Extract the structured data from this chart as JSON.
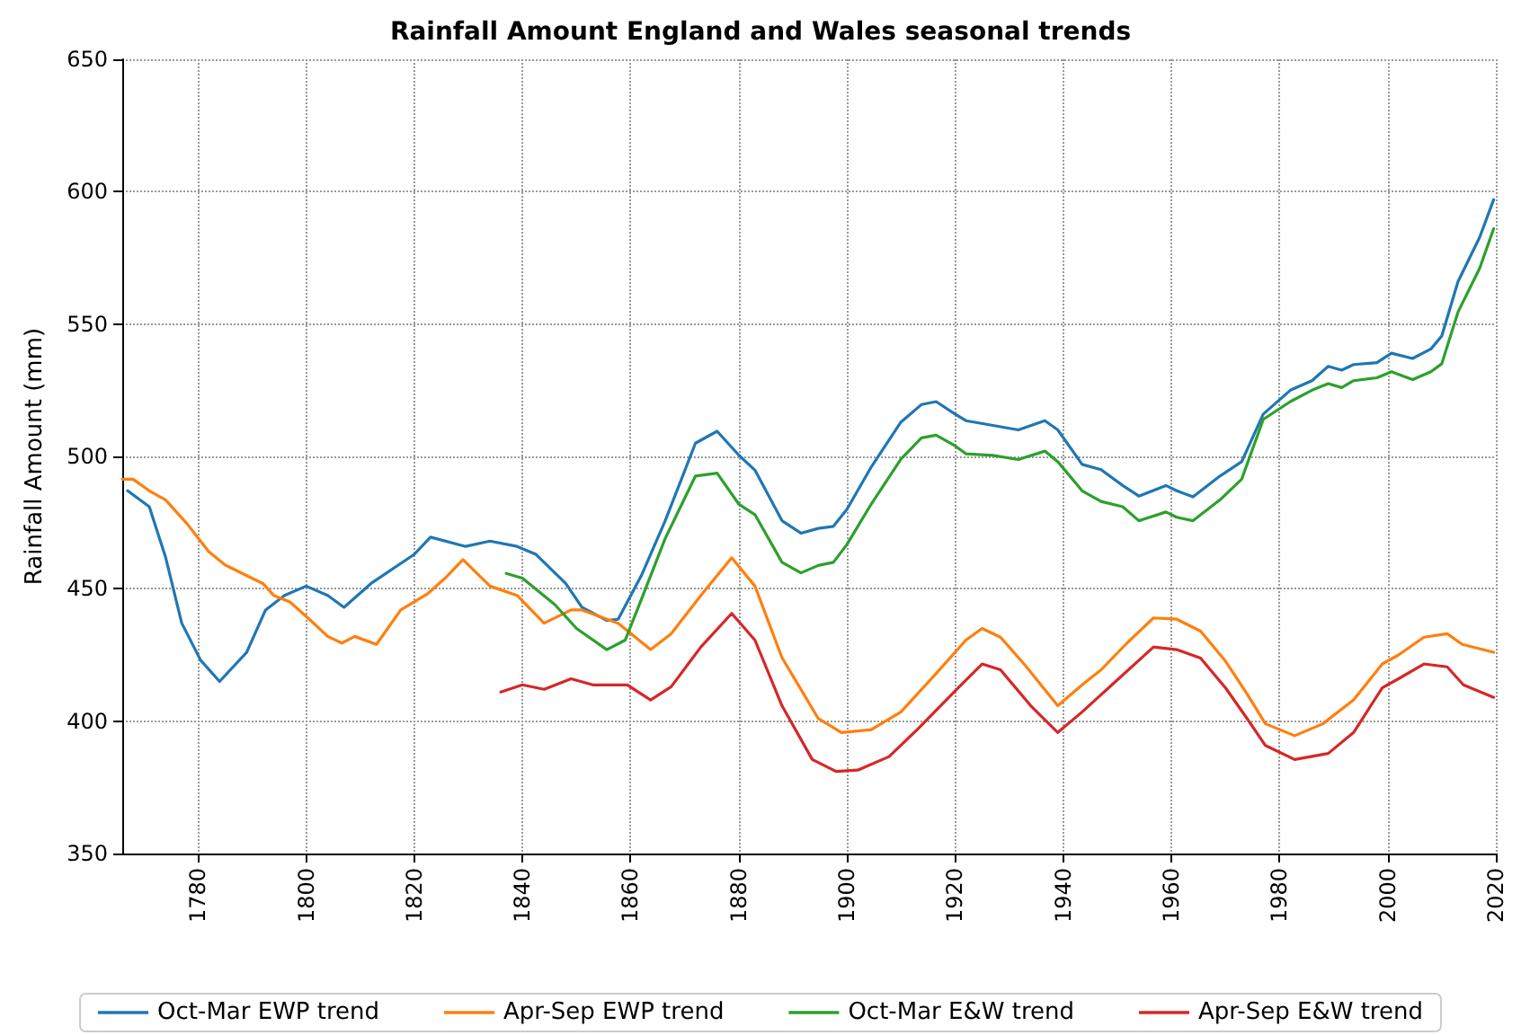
{
  "chart_data": {
    "type": "line",
    "title": "Rainfall Amount England and Wales seasonal trends",
    "ylabel": "Rainfall Amount (mm)",
    "xlim": [
      1766,
      2020
    ],
    "xticks": [
      1780,
      1800,
      1820,
      1840,
      1860,
      1880,
      1900,
      1920,
      1940,
      1960,
      1980,
      2000,
      2020
    ],
    "ylim": [
      350,
      650
    ],
    "yticks": [
      350,
      400,
      450,
      500,
      550,
      600,
      650
    ],
    "grid": true,
    "legend": "bottom",
    "marker": "none",
    "line_style": "solid",
    "series": [
      {
        "name": "Oct-Mar EWP trend",
        "color": "#1f77b4",
        "x": [
          1767,
          1771,
          1774,
          1777,
          1780.5,
          1784,
          1789,
          1792.5,
          1796,
          1800,
          1804,
          1807,
          1812,
          1820,
          1823,
          1829.5,
          1834,
          1839,
          1842.5,
          1848,
          1851,
          1855.6,
          1857.7,
          1862,
          1866.4,
          1872,
          1876,
          1880,
          1883,
          1888,
          1891.5,
          1894.7,
          1897.5,
          1900,
          1904.5,
          1910,
          1913.8,
          1916.5,
          1920,
          1922,
          1927,
          1931.7,
          1936.6,
          1939,
          1943.5,
          1947,
          1951,
          1954,
          1959,
          1961,
          1964,
          1969,
          1973,
          1977,
          1982,
          1986,
          1989,
          1991.5,
          1993.7,
          1998,
          2000.7,
          2004.6,
          2008,
          2010,
          2013,
          2017,
          2019.6
        ],
        "values": [
          487,
          481,
          462,
          437,
          423,
          415,
          426,
          442,
          447.5,
          451,
          447.5,
          443,
          452,
          463,
          469.5,
          466,
          468,
          466,
          463,
          452,
          443,
          438,
          438.5,
          455,
          475.7,
          505,
          509.5,
          500.5,
          494.8,
          475.7,
          471,
          472.8,
          473.6,
          480,
          496,
          513,
          519.6,
          520.7,
          516,
          513.5,
          511.7,
          510,
          513.5,
          510,
          497,
          495,
          489,
          485,
          489,
          487,
          484.7,
          492.6,
          498,
          516,
          525,
          528.6,
          534,
          532.6,
          534.7,
          535.4,
          539,
          537,
          540.6,
          545.5,
          566,
          582.7,
          597
        ]
      },
      {
        "name": "Apr-Sep EWP trend",
        "color": "#ff7f0e",
        "x": [
          1766,
          1768,
          1771,
          1774,
          1778,
          1782,
          1785,
          1792,
          1794,
          1797,
          1800.6,
          1804,
          1806.6,
          1809,
          1813,
          1817.5,
          1822.4,
          1825.7,
          1829,
          1834,
          1839,
          1844,
          1849,
          1851,
          1857.7,
          1863.7,
          1867.5,
          1873,
          1878.7,
          1883,
          1888,
          1894.7,
          1899,
          1904.5,
          1910,
          1916.5,
          1922,
          1925,
          1928.4,
          1933,
          1939,
          1943.5,
          1947,
          1951.8,
          1956.7,
          1961,
          1965.4,
          1970,
          1974,
          1977.4,
          1982.8,
          1988,
          1993.7,
          1999,
          2002,
          2006.7,
          2011,
          2013.8,
          2019.6
        ],
        "values": [
          491.4,
          491.4,
          487,
          483.6,
          474.5,
          464,
          459,
          452,
          447.5,
          445,
          438.5,
          432,
          429.5,
          432,
          429,
          442,
          448,
          454,
          461,
          451,
          447.5,
          437,
          442,
          442,
          437,
          427,
          433,
          447.5,
          461.7,
          451,
          424,
          401,
          395.7,
          396.8,
          403.5,
          418,
          430.6,
          435,
          431.7,
          421,
          405.8,
          413.7,
          419.4,
          429.5,
          439,
          438.5,
          434,
          422.7,
          410.3,
          399,
          394.5,
          399,
          408,
          421.6,
          425,
          431.7,
          433,
          429,
          426
        ]
      },
      {
        "name": "Oct-Mar E&W trend",
        "color": "#2ca02c",
        "x": [
          1837,
          1840,
          1846,
          1850,
          1855.6,
          1859,
          1862,
          1866.4,
          1872,
          1876,
          1880,
          1883,
          1888,
          1891.5,
          1894.7,
          1897.5,
          1900,
          1904.5,
          1910,
          1913.8,
          1916.5,
          1920,
          1922,
          1927,
          1931.7,
          1936.6,
          1939,
          1943.5,
          1947,
          1951,
          1954,
          1959,
          1961,
          1964,
          1969,
          1973,
          1977,
          1982,
          1986,
          1989,
          1991.5,
          1993.7,
          1998,
          2000.7,
          2004.6,
          2008,
          2010,
          2013,
          2017,
          2019.6
        ],
        "values": [
          455.8,
          454,
          444,
          435,
          427,
          430.6,
          446,
          469,
          492.6,
          493.7,
          482,
          478,
          460,
          456,
          458.8,
          460,
          466.7,
          482,
          499,
          507,
          508,
          504,
          501,
          500.4,
          498.8,
          502,
          498,
          487,
          483,
          481,
          475.7,
          479,
          477,
          475.7,
          483.6,
          491.4,
          514,
          520.7,
          525,
          527.5,
          526,
          528.6,
          529.7,
          532,
          529,
          532,
          535,
          554.5,
          571,
          586
        ]
      },
      {
        "name": "Apr-Sep E&W trend",
        "color": "#d62728",
        "x": [
          1836,
          1840,
          1844,
          1849,
          1853,
          1855.6,
          1859.4,
          1863.7,
          1867.5,
          1873,
          1878.7,
          1883,
          1888,
          1893.6,
          1898,
          1902,
          1907.8,
          1913,
          1920,
          1925,
          1928.4,
          1934,
          1939,
          1943.5,
          1949,
          1956.7,
          1961,
          1965.4,
          1970,
          1974,
          1977.4,
          1982.8,
          1989,
          1993.7,
          1999,
          2002,
          2006.7,
          2011,
          2014,
          2019.6
        ],
        "values": [
          411,
          413.7,
          412,
          416,
          413.7,
          413.7,
          413.7,
          408,
          413,
          428,
          440.7,
          430.6,
          405.8,
          385.5,
          381,
          381.5,
          386.6,
          396.8,
          411.4,
          421.6,
          419.4,
          405.8,
          395.7,
          403.5,
          413.7,
          428,
          427,
          423.8,
          412.6,
          401,
          390.8,
          385.5,
          387.8,
          395.7,
          412.6,
          416,
          421.6,
          420.5,
          413.7,
          409
        ]
      }
    ]
  }
}
